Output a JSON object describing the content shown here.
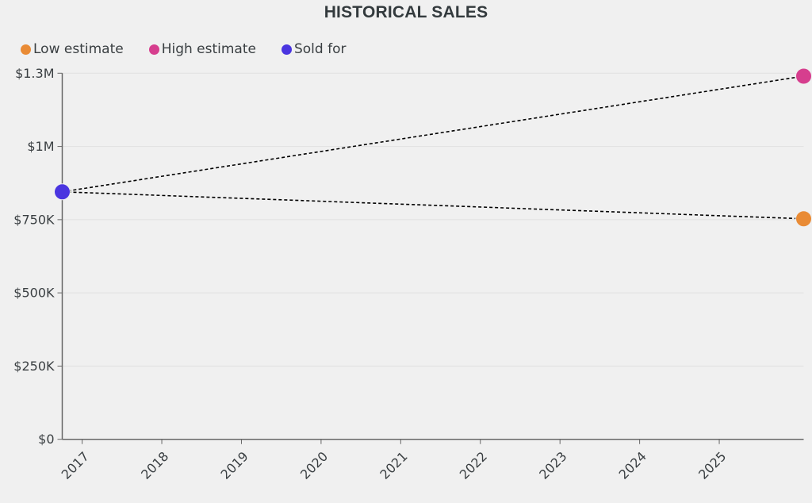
{
  "chart_data": {
    "type": "line",
    "title": "HISTORICAL SALES",
    "xlabel": "",
    "ylabel": "",
    "xlim": [
      2016.75,
      2026.06
    ],
    "ylim": [
      0,
      1250000
    ],
    "grid": true,
    "legend_position": "top-left",
    "y_ticks": [
      {
        "value": 0,
        "label": "$0"
      },
      {
        "value": 250000,
        "label": "$250K"
      },
      {
        "value": 500000,
        "label": "$500K"
      },
      {
        "value": 750000,
        "label": "$750K"
      },
      {
        "value": 1000000,
        "label": "$1M"
      },
      {
        "value": 1250000,
        "label": "$1.3M"
      }
    ],
    "x_ticks": [
      {
        "value": 2017,
        "label": "2017"
      },
      {
        "value": 2018,
        "label": "2018"
      },
      {
        "value": 2019,
        "label": "2019"
      },
      {
        "value": 2020,
        "label": "2020"
      },
      {
        "value": 2021,
        "label": "2021"
      },
      {
        "value": 2022,
        "label": "2022"
      },
      {
        "value": 2023,
        "label": "2023"
      },
      {
        "value": 2024,
        "label": "2024"
      },
      {
        "value": 2025,
        "label": "2025"
      }
    ],
    "series": [
      {
        "name": "Low estimate",
        "key": "low",
        "color": "#e98b35",
        "points": [
          {
            "x": 2026.06,
            "y": 753000
          }
        ]
      },
      {
        "name": "High estimate",
        "key": "high",
        "color": "#d63e8e",
        "points": [
          {
            "x": 2026.06,
            "y": 1240000
          }
        ]
      },
      {
        "name": "Sold for",
        "key": "sold",
        "color": "#4a35e0",
        "points": [
          {
            "x": 2016.75,
            "y": 845000
          }
        ]
      }
    ],
    "connectors": [
      {
        "from": "sold",
        "to": "high",
        "style": "dashed",
        "color": "#000000"
      },
      {
        "from": "sold",
        "to": "low",
        "style": "dashed",
        "color": "#000000"
      }
    ]
  }
}
